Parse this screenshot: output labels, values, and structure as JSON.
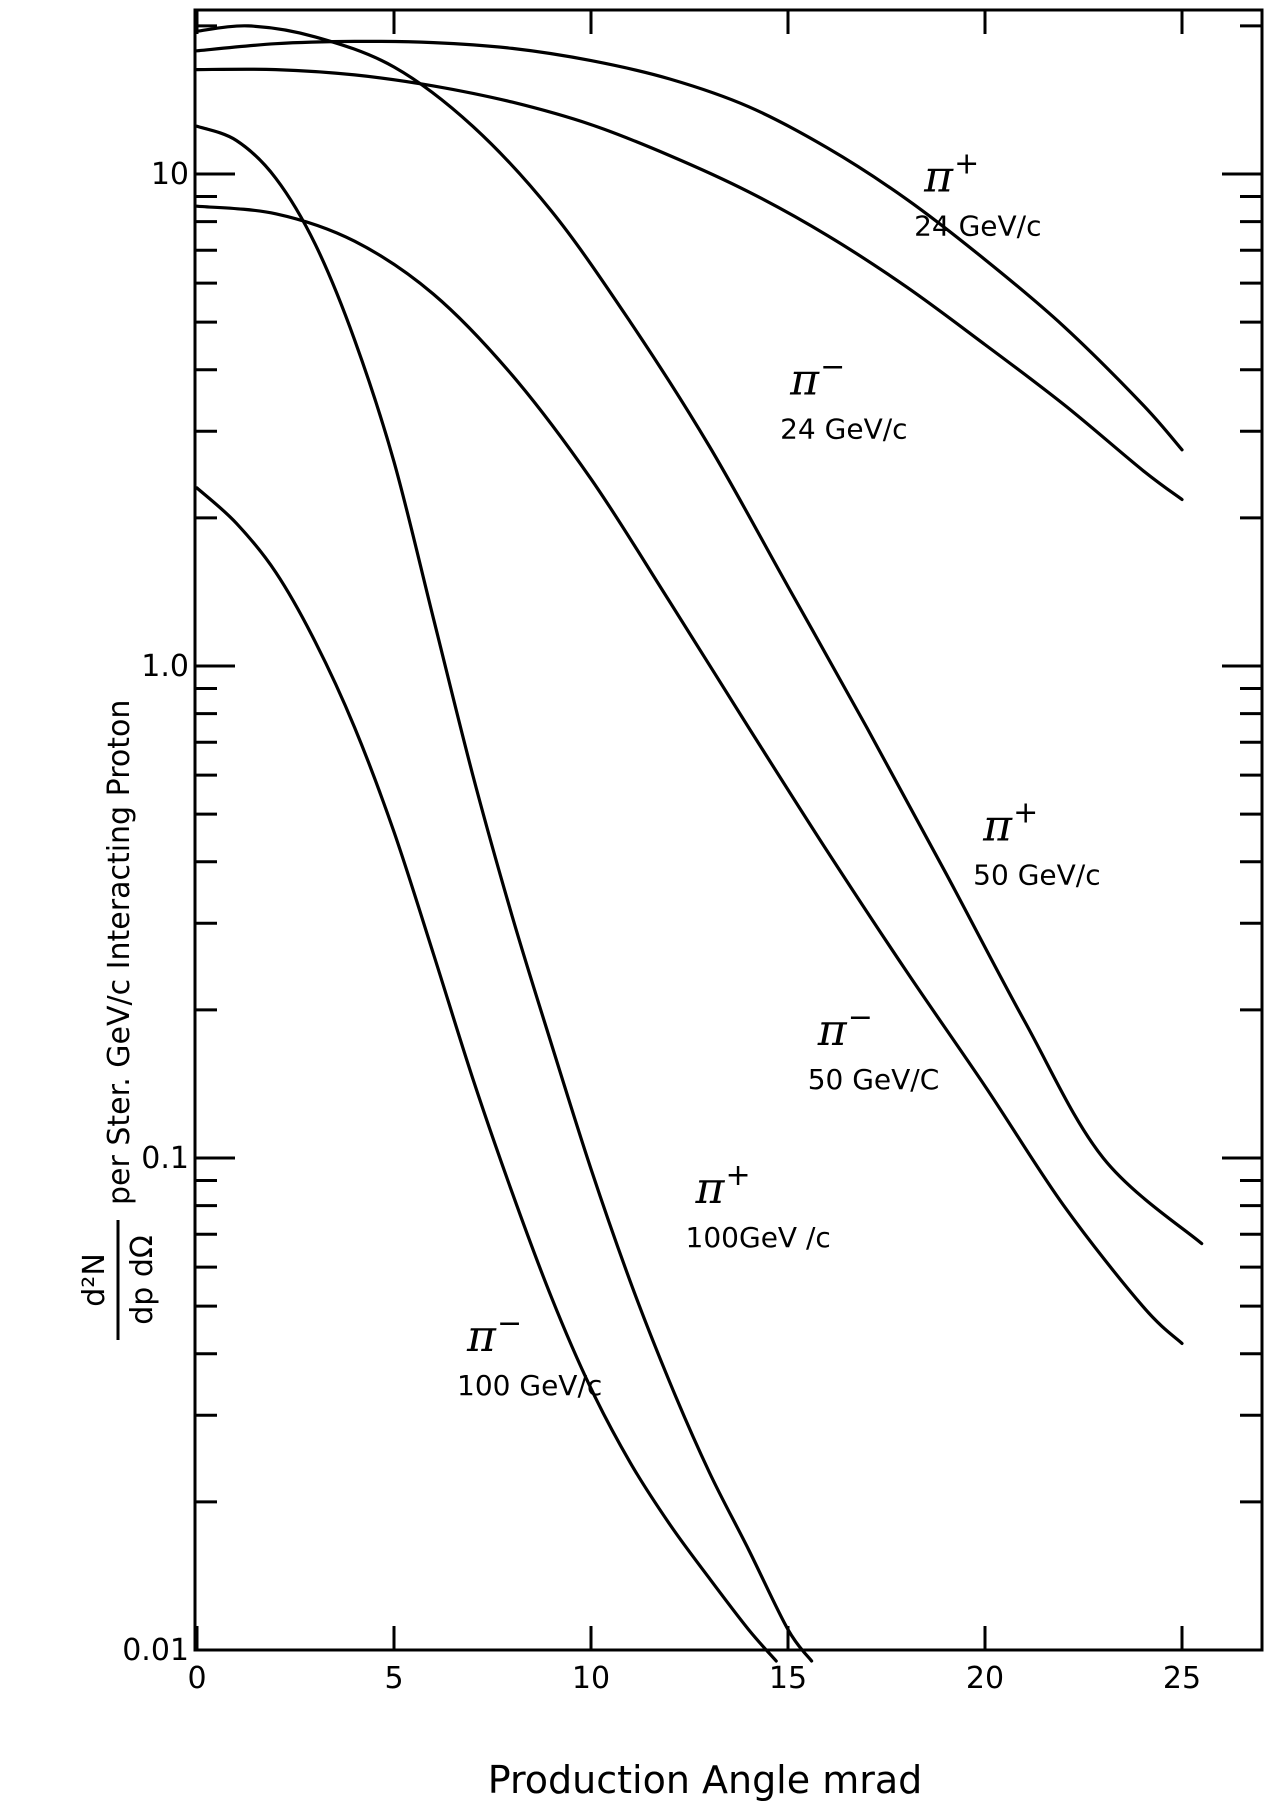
{
  "chart_data": {
    "type": "line",
    "title": "",
    "xlabel": "Production Angle mrad",
    "ylabel": {
      "numerator": "d²N",
      "denominator": "dp dΩ",
      "rest": "per Ster. GeV/c Interacting Proton"
    },
    "xlim": [
      0,
      27.5
    ],
    "ylim": [
      0.01,
      28
    ],
    "yscale": "log",
    "grid": false,
    "x_ticks": [
      "0",
      "5",
      "10",
      "15",
      "20",
      "25"
    ],
    "y_ticks": [
      "0.01",
      "0.1",
      "1.0",
      "10"
    ],
    "series": [
      {
        "name": "24 GeV/c",
        "particle": "π",
        "sign": "+",
        "x": [
          0,
          2,
          4,
          6,
          8,
          10,
          12,
          14,
          16,
          18,
          20,
          22,
          24,
          25
        ],
        "y": [
          17.8,
          18.4,
          18.6,
          18.5,
          18.0,
          17.0,
          15.6,
          13.7,
          11.3,
          8.9,
          6.7,
          4.9,
          3.4,
          2.75
        ]
      },
      {
        "name": "24 GeV/c",
        "particle": "π",
        "sign": "−",
        "x": [
          0,
          2,
          4,
          6,
          8,
          10,
          12,
          14,
          16,
          18,
          20,
          22,
          24,
          25
        ],
        "y": [
          16.3,
          16.3,
          15.9,
          15.1,
          14.0,
          12.6,
          10.9,
          9.2,
          7.5,
          5.9,
          4.5,
          3.4,
          2.5,
          2.18
        ]
      },
      {
        "name": "50 GeV/c",
        "particle": "π",
        "sign": "+",
        "x": [
          0,
          1.3,
          3,
          5,
          7,
          9,
          11,
          13,
          15,
          17,
          19,
          21,
          23,
          25.5
        ],
        "y": [
          19.5,
          20.0,
          19.0,
          16.5,
          12.5,
          8.4,
          5.0,
          2.8,
          1.45,
          0.75,
          0.38,
          0.19,
          0.1,
          0.067
        ]
      },
      {
        "name": "50 GeV/c",
        "particle": "π",
        "sign": "−",
        "x": [
          0,
          2,
          4,
          6,
          8,
          10,
          12,
          14,
          16,
          18,
          20,
          22,
          24,
          25
        ],
        "y": [
          8.6,
          8.3,
          7.3,
          5.7,
          3.9,
          2.4,
          1.35,
          0.75,
          0.42,
          0.24,
          0.14,
          0.08,
          0.05,
          0.042
        ]
      },
      {
        "name": "100 GeV/c",
        "particle": "π",
        "sign": "+",
        "x": [
          0,
          1,
          2,
          3,
          4,
          5,
          6,
          7,
          8,
          9,
          10,
          11,
          12,
          13,
          14,
          15,
          15.6
        ],
        "y": [
          12.5,
          11.7,
          9.8,
          7.2,
          4.6,
          2.6,
          1.25,
          0.6,
          0.31,
          0.17,
          0.095,
          0.056,
          0.035,
          0.023,
          0.016,
          0.011,
          0.0095
        ]
      },
      {
        "name": "100 GeV/c",
        "particle": "π",
        "sign": "−",
        "x": [
          0,
          1,
          2,
          3,
          4,
          5,
          6,
          7,
          8,
          9,
          10,
          11,
          12,
          13,
          14,
          14.7
        ],
        "y": [
          2.3,
          1.95,
          1.55,
          1.12,
          0.75,
          0.46,
          0.26,
          0.145,
          0.085,
          0.052,
          0.034,
          0.024,
          0.018,
          0.014,
          0.011,
          0.0095
        ]
      }
    ],
    "annotations": [
      {
        "particle": "π",
        "sign": "+",
        "energy": "24 GeV/c",
        "at": [
          18.2,
          7.5
        ]
      },
      {
        "particle": "π",
        "sign": "−",
        "energy": "24 GeV/c",
        "at": [
          14.8,
          2.9
        ]
      },
      {
        "particle": "π",
        "sign": "+",
        "energy": "50 GeV/c",
        "at": [
          19.7,
          0.36
        ]
      },
      {
        "particle": "π",
        "sign": "−",
        "energy": "50 GeV/C",
        "at": [
          15.5,
          0.138
        ]
      },
      {
        "particle": "π",
        "sign": "+",
        "energy": "100GeV /c",
        "at": [
          12.4,
          0.066
        ]
      },
      {
        "particle": "π",
        "sign": "−",
        "energy": "100 GeV/c",
        "at": [
          6.6,
          0.033
        ]
      }
    ]
  }
}
